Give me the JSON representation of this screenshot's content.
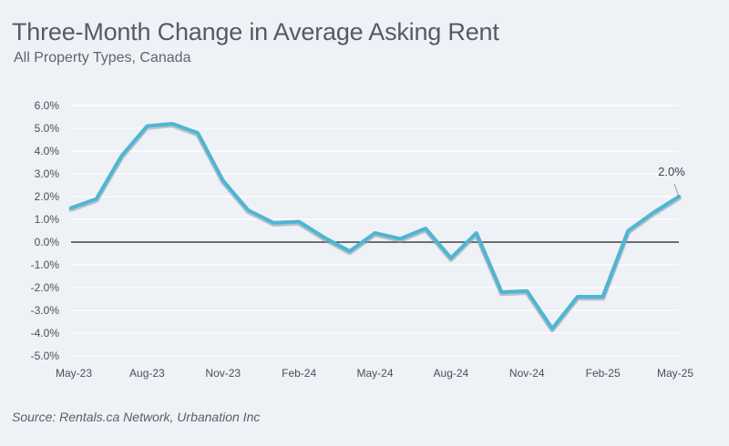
{
  "header": {
    "title": "Three-Month Change in Average Asking Rent",
    "subtitle": "All Property Types, Canada"
  },
  "footer": {
    "source": "Source: Rentals.ca Network, Urbanation Inc"
  },
  "colors": {
    "line": "#4db6d3",
    "line_shadow": "#8c97a4",
    "zero_line": "#222222",
    "grid": "#ffffff",
    "background": "#eef1f6"
  },
  "chart_data": {
    "type": "line",
    "title": "Three-Month Change in Average Asking Rent",
    "subtitle": "All Property Types, Canada",
    "xlabel": "",
    "ylabel": "",
    "x": [
      "May-23",
      "Jun-23",
      "Jul-23",
      "Aug-23",
      "Sep-23",
      "Oct-23",
      "Nov-23",
      "Dec-23",
      "Jan-24",
      "Feb-24",
      "Mar-24",
      "Apr-24",
      "May-24",
      "Jun-24",
      "Jul-24",
      "Aug-24",
      "Sep-24",
      "Oct-24",
      "Nov-24",
      "Dec-24",
      "Jan-25",
      "Feb-25",
      "Mar-25",
      "Apr-25",
      "May-25"
    ],
    "x_tick_labels": [
      "May-23",
      "Aug-23",
      "Nov-23",
      "Feb-24",
      "May-24",
      "Aug-24",
      "Nov-24",
      "Feb-25",
      "May-25"
    ],
    "y_tick_labels": [
      "6.0%",
      "5.0%",
      "4.0%",
      "3.0%",
      "2.0%",
      "1.0%",
      "0.0%",
      "-1.0%",
      "-2.0%",
      "-3.0%",
      "-4.0%",
      "-5.0%"
    ],
    "ylim": [
      -5.0,
      6.0
    ],
    "grid": true,
    "series": [
      {
        "values": [
          1.5,
          1.9,
          3.8,
          5.1,
          5.2,
          4.8,
          2.7,
          1.4,
          0.85,
          0.9,
          0.2,
          -0.4,
          0.4,
          0.15,
          0.6,
          -0.7,
          0.4,
          -2.2,
          -2.15,
          -3.8,
          -2.4,
          -2.4,
          0.5,
          1.3,
          2.0
        ]
      }
    ],
    "annotations": [
      {
        "text": "2.0%",
        "x": "May-25",
        "y": 2.0
      }
    ]
  }
}
